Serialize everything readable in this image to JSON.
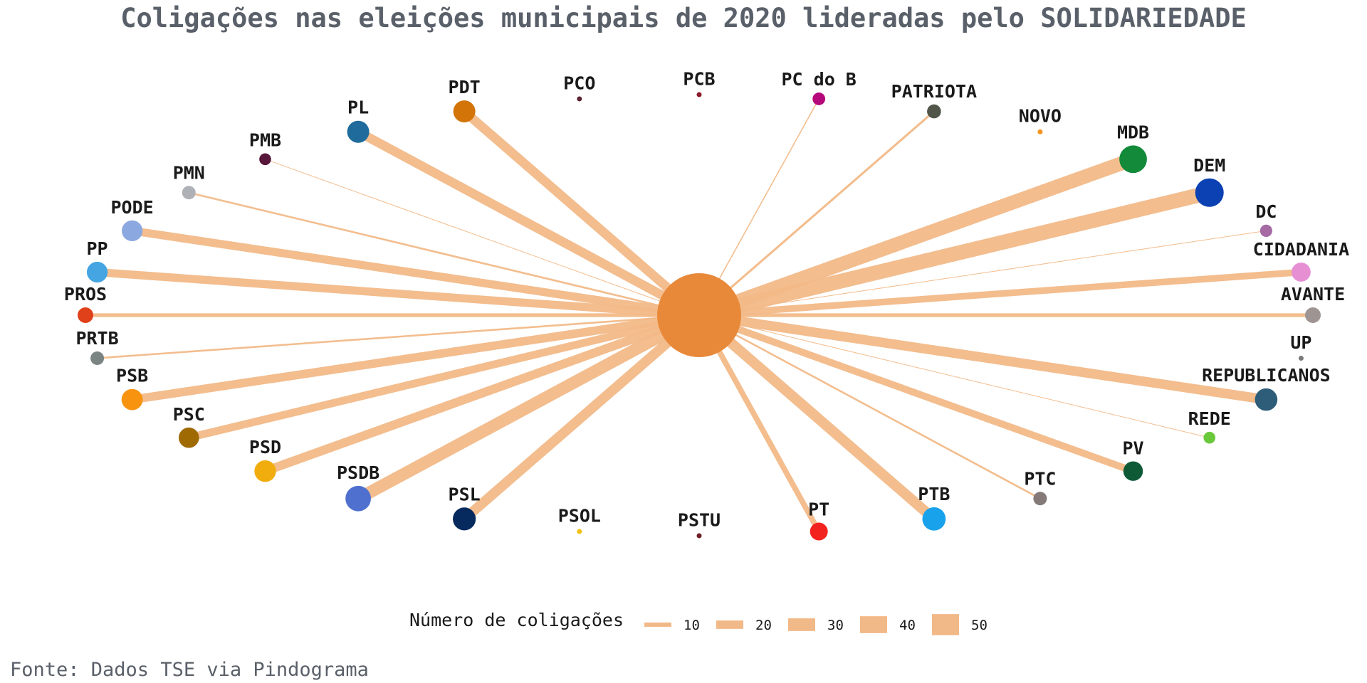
{
  "chart_data": {
    "type": "network",
    "title": "Coligações nas eleições municipais de 2020 lideradas pelo SOLIDARIEDADE",
    "center": {
      "name": "SOLIDARIEDADE",
      "color": "#E8893A"
    },
    "edge_color": "#F2B988",
    "nodes": [
      {
        "name": "PCB",
        "value": 0,
        "color": "#8B1A2B"
      },
      {
        "name": "PC do B",
        "value": 3,
        "color": "#B5087A"
      },
      {
        "name": "PATRIOTA",
        "value": 6,
        "color": "#50564A"
      },
      {
        "name": "NOVO",
        "value": 0,
        "color": "#F7941D"
      },
      {
        "name": "MDB",
        "value": 38,
        "color": "#138A3A"
      },
      {
        "name": "DEM",
        "value": 40,
        "color": "#0B41B2"
      },
      {
        "name": "DC",
        "value": 2,
        "color": "#A56AA4"
      },
      {
        "name": "CIDADANIA",
        "value": 18,
        "color": "#E68FD3"
      },
      {
        "name": "AVANTE",
        "value": 10,
        "color": "#9E9593"
      },
      {
        "name": "UP",
        "value": 0,
        "color": "#7A7A7A"
      },
      {
        "name": "REPUBLICANOS",
        "value": 26,
        "color": "#2E5D79"
      },
      {
        "name": "REDE",
        "value": 1,
        "color": "#6AC93A"
      },
      {
        "name": "PV",
        "value": 19,
        "color": "#0E5A37"
      },
      {
        "name": "PTC",
        "value": 5,
        "color": "#857A78"
      },
      {
        "name": "PTB",
        "value": 28,
        "color": "#19A2EC"
      },
      {
        "name": "PT",
        "value": 15,
        "color": "#F2221F"
      },
      {
        "name": "PSTU",
        "value": 0,
        "color": "#6E1E27"
      },
      {
        "name": "PSOL",
        "value": 0,
        "color": "#F2C010"
      },
      {
        "name": "PSL",
        "value": 27,
        "color": "#062A5E"
      },
      {
        "name": "PSDB",
        "value": 33,
        "color": "#4F70CF"
      },
      {
        "name": "PSD",
        "value": 24,
        "color": "#F1AC0E"
      },
      {
        "name": "PSC",
        "value": 21,
        "color": "#A06A02"
      },
      {
        "name": "PSB",
        "value": 23,
        "color": "#F7930E"
      },
      {
        "name": "PRTB",
        "value": 5,
        "color": "#7A8483"
      },
      {
        "name": "PROS",
        "value": 10,
        "color": "#E0411A"
      },
      {
        "name": "PP",
        "value": 22,
        "color": "#44A5E2"
      },
      {
        "name": "PODE",
        "value": 22,
        "color": "#8CA8E0"
      },
      {
        "name": "PMN",
        "value": 5,
        "color": "#AEB1B5"
      },
      {
        "name": "PMB",
        "value": 1,
        "color": "#56173A"
      },
      {
        "name": "PL",
        "value": 25,
        "color": "#1F6C9C"
      },
      {
        "name": "PDT",
        "value": 25,
        "color": "#D37409"
      },
      {
        "name": "PCO",
        "value": 0,
        "color": "#5A2230"
      }
    ],
    "legend": {
      "title": "Número de coligações",
      "values": [
        10,
        20,
        30,
        40,
        50
      ]
    }
  },
  "source": "Fonte: Dados TSE via Pindograma"
}
